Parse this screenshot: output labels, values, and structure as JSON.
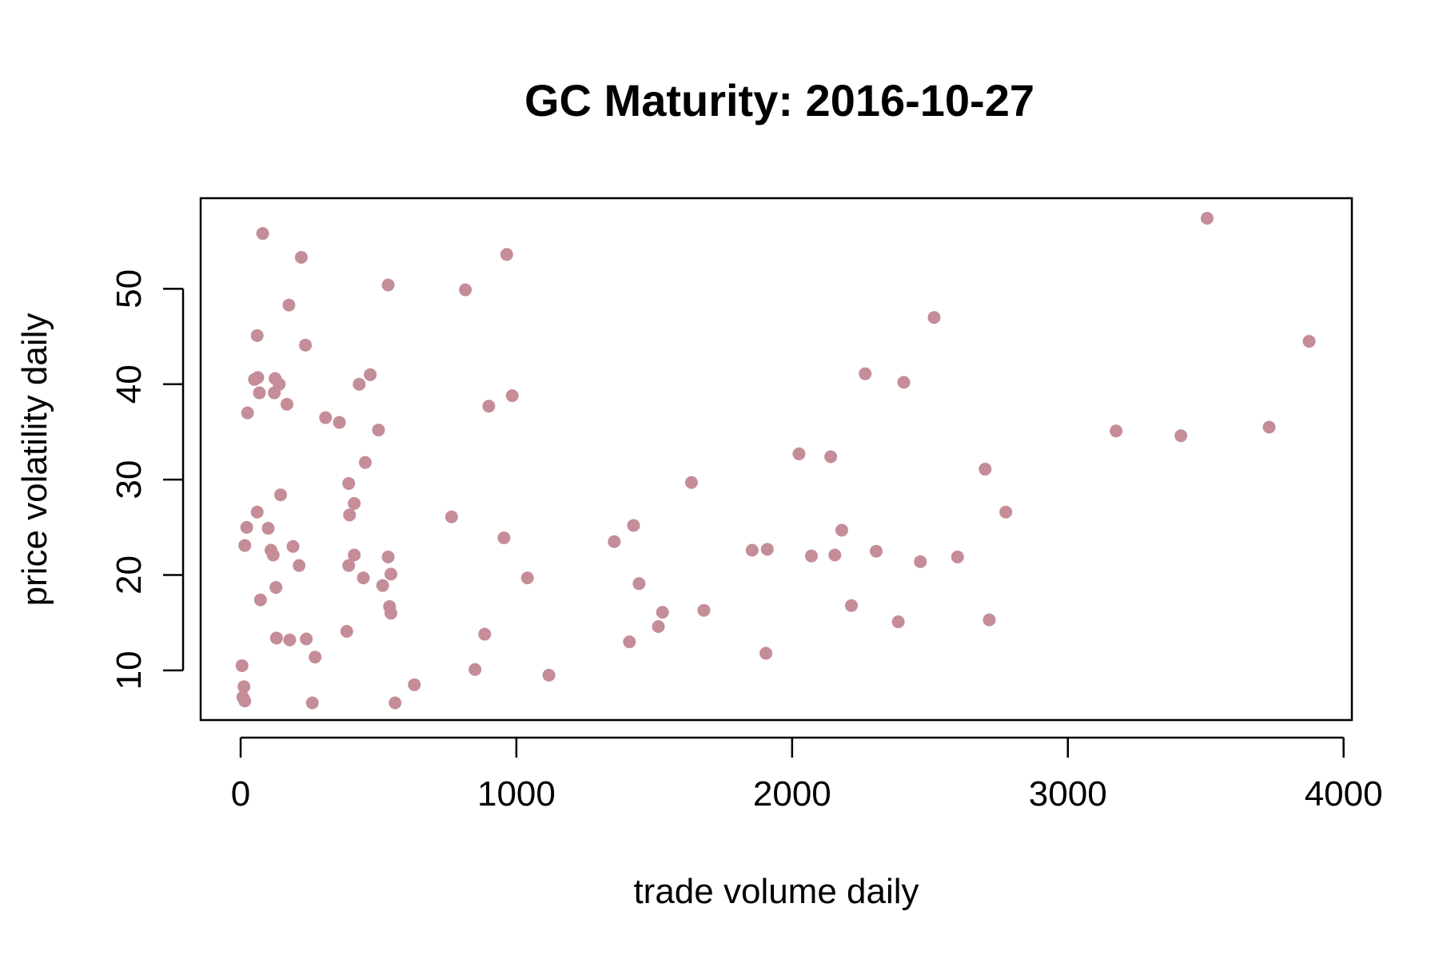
{
  "chart_data": {
    "type": "scatter",
    "title": "GC Maturity: 2016-10-27",
    "xlabel": "trade volume daily",
    "ylabel": "price volatility daily",
    "xlim": [
      -145,
      4030
    ],
    "ylim": [
      4.8,
      59.5
    ],
    "xticks": [
      0,
      1000,
      2000,
      3000,
      4000
    ],
    "yticks": [
      10,
      20,
      30,
      40,
      50
    ],
    "grid": false,
    "legend": "none",
    "point_color": "#c48d98",
    "points": [
      {
        "x": 80,
        "y": 55.8
      },
      {
        "x": 220,
        "y": 53.3
      },
      {
        "x": 175,
        "y": 48.3
      },
      {
        "x": 60,
        "y": 45.1
      },
      {
        "x": 235,
        "y": 44.1
      },
      {
        "x": 50,
        "y": 40.5
      },
      {
        "x": 62,
        "y": 40.7
      },
      {
        "x": 68,
        "y": 39.1
      },
      {
        "x": 25,
        "y": 37.0
      },
      {
        "x": 125,
        "y": 40.6
      },
      {
        "x": 140,
        "y": 40.0
      },
      {
        "x": 122,
        "y": 39.1
      },
      {
        "x": 168,
        "y": 37.9
      },
      {
        "x": 145,
        "y": 28.4
      },
      {
        "x": 60,
        "y": 26.6
      },
      {
        "x": 22,
        "y": 25.0
      },
      {
        "x": 100,
        "y": 24.9
      },
      {
        "x": 15,
        "y": 23.1
      },
      {
        "x": 190,
        "y": 23.0
      },
      {
        "x": 110,
        "y": 22.6
      },
      {
        "x": 118,
        "y": 22.1
      },
      {
        "x": 212,
        "y": 21.0
      },
      {
        "x": 128,
        "y": 18.7
      },
      {
        "x": 72,
        "y": 17.4
      },
      {
        "x": 130,
        "y": 13.4
      },
      {
        "x": 178,
        "y": 13.2
      },
      {
        "x": 238,
        "y": 13.3
      },
      {
        "x": 270,
        "y": 11.4
      },
      {
        "x": 5,
        "y": 10.5
      },
      {
        "x": 12,
        "y": 8.3
      },
      {
        "x": 8,
        "y": 7.2
      },
      {
        "x": 15,
        "y": 6.8
      },
      {
        "x": 260,
        "y": 6.6
      },
      {
        "x": 308,
        "y": 36.5
      },
      {
        "x": 358,
        "y": 36.0
      },
      {
        "x": 430,
        "y": 40.0
      },
      {
        "x": 470,
        "y": 41.0
      },
      {
        "x": 535,
        "y": 50.4
      },
      {
        "x": 500,
        "y": 35.2
      },
      {
        "x": 452,
        "y": 31.8
      },
      {
        "x": 392,
        "y": 29.6
      },
      {
        "x": 412,
        "y": 27.5
      },
      {
        "x": 395,
        "y": 26.3
      },
      {
        "x": 412,
        "y": 22.1
      },
      {
        "x": 392,
        "y": 21.0
      },
      {
        "x": 445,
        "y": 19.7
      },
      {
        "x": 515,
        "y": 18.9
      },
      {
        "x": 535,
        "y": 21.9
      },
      {
        "x": 545,
        "y": 20.1
      },
      {
        "x": 540,
        "y": 16.7
      },
      {
        "x": 545,
        "y": 16.0
      },
      {
        "x": 385,
        "y": 14.1
      },
      {
        "x": 560,
        "y": 6.6
      },
      {
        "x": 630,
        "y": 8.5
      },
      {
        "x": 815,
        "y": 49.9
      },
      {
        "x": 965,
        "y": 53.6
      },
      {
        "x": 900,
        "y": 37.7
      },
      {
        "x": 985,
        "y": 38.8
      },
      {
        "x": 765,
        "y": 26.1
      },
      {
        "x": 955,
        "y": 23.9
      },
      {
        "x": 1040,
        "y": 19.7
      },
      {
        "x": 885,
        "y": 13.8
      },
      {
        "x": 850,
        "y": 10.1
      },
      {
        "x": 1118,
        "y": 9.5
      },
      {
        "x": 1355,
        "y": 23.5
      },
      {
        "x": 1425,
        "y": 25.2
      },
      {
        "x": 1445,
        "y": 19.1
      },
      {
        "x": 1410,
        "y": 13.0
      },
      {
        "x": 1515,
        "y": 14.6
      },
      {
        "x": 1530,
        "y": 16.1
      },
      {
        "x": 1635,
        "y": 29.7
      },
      {
        "x": 1680,
        "y": 16.3
      },
      {
        "x": 1855,
        "y": 22.6
      },
      {
        "x": 1910,
        "y": 22.7
      },
      {
        "x": 1905,
        "y": 11.8
      },
      {
        "x": 2025,
        "y": 32.7
      },
      {
        "x": 2070,
        "y": 22.0
      },
      {
        "x": 2140,
        "y": 32.4
      },
      {
        "x": 2155,
        "y": 22.1
      },
      {
        "x": 2180,
        "y": 24.7
      },
      {
        "x": 2215,
        "y": 16.8
      },
      {
        "x": 2265,
        "y": 41.1
      },
      {
        "x": 2305,
        "y": 22.5
      },
      {
        "x": 2385,
        "y": 15.1
      },
      {
        "x": 2405,
        "y": 40.2
      },
      {
        "x": 2465,
        "y": 21.4
      },
      {
        "x": 2515,
        "y": 47.0
      },
      {
        "x": 2600,
        "y": 21.9
      },
      {
        "x": 2700,
        "y": 31.1
      },
      {
        "x": 2715,
        "y": 15.3
      },
      {
        "x": 2775,
        "y": 26.6
      },
      {
        "x": 3175,
        "y": 35.1
      },
      {
        "x": 3410,
        "y": 34.6
      },
      {
        "x": 3505,
        "y": 57.4
      },
      {
        "x": 3730,
        "y": 35.5
      },
      {
        "x": 3875,
        "y": 44.5
      }
    ]
  }
}
